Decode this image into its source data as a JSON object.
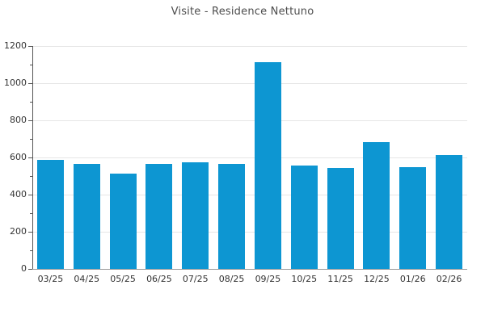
{
  "title": "Visite - Residence Nettuno",
  "chart_data": {
    "type": "bar",
    "title": "Visite - Residence Nettuno",
    "categories": [
      "03/25",
      "04/25",
      "05/25",
      "06/25",
      "07/25",
      "08/25",
      "09/25",
      "10/25",
      "11/25",
      "12/25",
      "01/26",
      "02/26"
    ],
    "values": [
      585,
      565,
      515,
      565,
      575,
      565,
      1113,
      556,
      543,
      683,
      549,
      613
    ],
    "xlabel": "",
    "ylabel": "",
    "ylim": [
      0,
      1200
    ],
    "ytick_step": 200,
    "y_minor_tick_step": 100,
    "ytick_labels": [
      "0",
      "200",
      "400",
      "600",
      "800",
      "1000",
      "1200"
    ],
    "legend": null,
    "grid": "horizontal-major",
    "colors": {
      "bar": "#0d96d2",
      "gridline": "#e6e6e6",
      "y_axis": "#555555",
      "x_axis": "#999999",
      "tick_label": "#333333",
      "title": "#4d4d4d",
      "background": "#ffffff"
    }
  }
}
